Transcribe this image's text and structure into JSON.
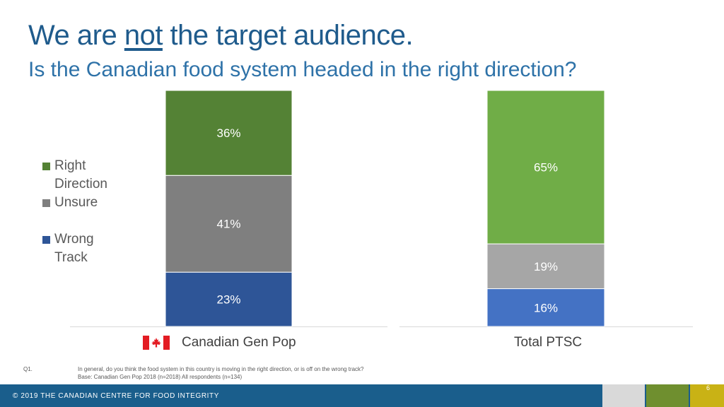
{
  "header": {
    "title_before": "We are ",
    "title_emph": "not",
    "title_after": " the target audience.",
    "subtitle": "Is the Canadian food system headed in the right direction?"
  },
  "chart_data": {
    "type": "bar",
    "stacked": true,
    "categories": [
      "Canadian Gen Pop",
      "Total PTSC"
    ],
    "series": [
      {
        "name": "Wrong Track",
        "values": [
          23,
          16
        ],
        "colors": [
          "#2e5597",
          "#4472c4"
        ]
      },
      {
        "name": "Unsure",
        "values": [
          41,
          19
        ],
        "colors": [
          "#7f7f7f",
          "#a6a6a6"
        ]
      },
      {
        "name": "Right Direction",
        "values": [
          36,
          65
        ],
        "colors": [
          "#548235",
          "#70ad47"
        ]
      }
    ],
    "value_suffix": "%",
    "ylim": [
      0,
      100
    ],
    "legend_position": "left"
  },
  "legend": {
    "items": [
      {
        "label": "Right Direction",
        "color": "#548235"
      },
      {
        "label": "Unsure",
        "color": "#7f7f7f"
      },
      {
        "label": "Wrong Track",
        "color": "#2e5597"
      }
    ]
  },
  "flag_icon": "canada-flag-icon",
  "footnote": {
    "q_label": "Q1.",
    "question": "In general, do you think the food system in this country is moving in the right direction, or is off on the wrong track?",
    "base": "Base: Canadian Gen Pop 2018 (n=2018) All respondents (n=134)"
  },
  "footer": {
    "copyright": "© 2019 THE CANADIAN CENTRE FOR FOOD INTEGRITY",
    "page_number": "6"
  }
}
